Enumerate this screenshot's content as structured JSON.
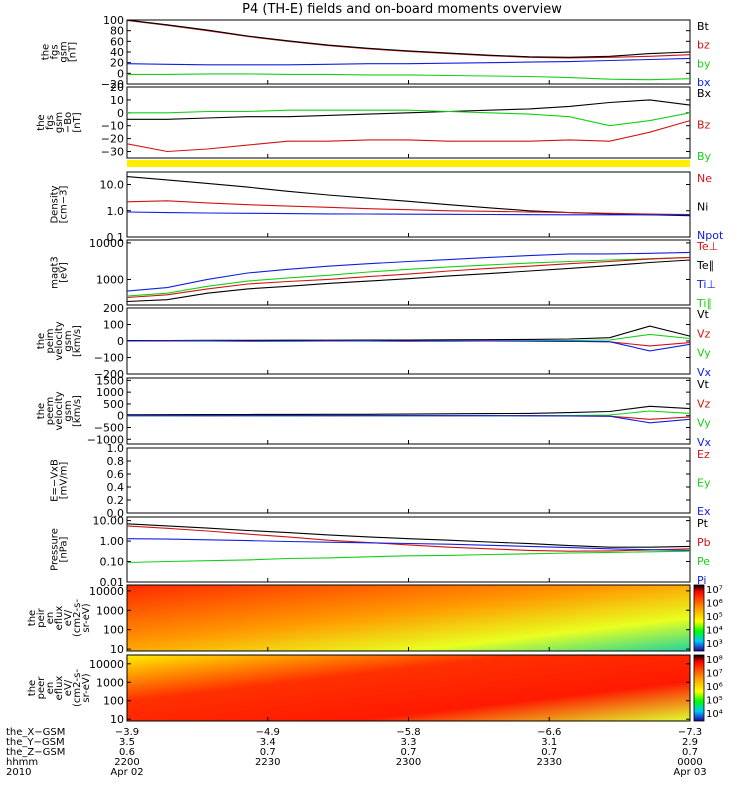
{
  "title": "P4 (TH-E) fields and on-board moments overview",
  "colors": {
    "black": "#000000",
    "red": "#d01414",
    "green": "#16d016",
    "blue": "#1020e0",
    "yellow": "#ffee00"
  },
  "chart_data": [
    {
      "type": "line",
      "ylabel": [
        "the",
        "fgs",
        "gsm",
        "[nT]"
      ],
      "ylim": [
        -20,
        100
      ],
      "yticks": [
        "100",
        "80",
        "60",
        "40",
        "20",
        "0",
        "−20"
      ],
      "legend": [
        {
          "name": "Bt",
          "color": "black"
        },
        {
          "name": "bz",
          "color": "red"
        },
        {
          "name": "by",
          "color": "green"
        },
        {
          "name": "bx",
          "color": "blue"
        }
      ],
      "series": [
        {
          "name": "bz",
          "color": "red",
          "values": [
            99,
            90,
            80,
            69,
            60,
            52,
            46,
            41,
            37,
            33,
            30,
            29,
            30,
            32,
            35
          ]
        },
        {
          "name": "Bt",
          "color": "black",
          "values": [
            100,
            91,
            81,
            70,
            61,
            53,
            47,
            42,
            38,
            34,
            31,
            30,
            32,
            37,
            40
          ]
        },
        {
          "name": "bx",
          "color": "blue",
          "values": [
            18,
            17,
            16,
            16,
            16,
            17,
            18,
            18,
            19,
            20,
            21,
            22,
            24,
            26,
            28
          ]
        },
        {
          "name": "by",
          "color": "green",
          "values": [
            -2,
            -2,
            -1,
            -1,
            -2,
            -2,
            -3,
            -3,
            -4,
            -5,
            -6,
            -8,
            -11,
            -12,
            -10
          ]
        }
      ]
    },
    {
      "type": "line",
      "ylabel": [
        "the",
        "fgs",
        "gsm",
        "−Bo",
        "[nT]"
      ],
      "ylim": [
        -35,
        20
      ],
      "yticks": [
        "20",
        "10",
        "0",
        "−10",
        "−20",
        "−30"
      ],
      "legend": [
        {
          "name": "Bx",
          "color": "black"
        },
        {
          "name": "Bz",
          "color": "red"
        },
        {
          "name": "By",
          "color": "green"
        }
      ],
      "series": [
        {
          "name": "Bx",
          "color": "black",
          "values": [
            -5,
            -5,
            -4,
            -3,
            -3,
            -2,
            -1,
            0,
            1,
            2,
            3,
            5,
            8,
            10,
            6
          ]
        },
        {
          "name": "By",
          "color": "green",
          "values": [
            0,
            0,
            1,
            1,
            2,
            2,
            2,
            2,
            1,
            0,
            -1,
            -3,
            -10,
            -6,
            0
          ]
        },
        {
          "name": "Bz",
          "color": "red",
          "values": [
            -24,
            -30,
            -28,
            -25,
            -22,
            -22,
            -21,
            -21,
            -22,
            -22,
            -22,
            -21,
            -22,
            -15,
            -6
          ]
        }
      ]
    },
    {
      "type": "line",
      "ylabel": [
        "Density",
        "[cm−3]"
      ],
      "ylim": [
        0.1,
        30
      ],
      "log": true,
      "yticks": [
        "10.0",
        "1.0",
        "0.1"
      ],
      "legend": [
        {
          "name": "Ne",
          "color": "red"
        },
        {
          "name": "Ni",
          "color": "black"
        },
        {
          "name": "Npot",
          "color": "blue"
        }
      ],
      "series": [
        {
          "name": "Ni",
          "color": "black",
          "values": [
            20,
            15,
            11,
            8,
            5.5,
            4,
            3,
            2.3,
            1.7,
            1.3,
            1.0,
            0.85,
            0.75,
            0.7,
            0.65
          ]
        },
        {
          "name": "Ne",
          "color": "red",
          "values": [
            2.2,
            2.4,
            2.0,
            1.7,
            1.5,
            1.35,
            1.2,
            1.1,
            1.0,
            0.95,
            0.9,
            0.85,
            0.8,
            0.75,
            0.72
          ]
        },
        {
          "name": "Npot",
          "color": "blue",
          "values": [
            0.9,
            0.85,
            0.82,
            0.8,
            0.78,
            0.76,
            0.75,
            0.74,
            0.73,
            0.72,
            0.71,
            0.7,
            0.7,
            0.7,
            0.7
          ]
        }
      ]
    },
    {
      "type": "line",
      "ylabel": [
        "magt3",
        "[eV]"
      ],
      "ylim": [
        200,
        12000
      ],
      "log": true,
      "yticks": [
        "10000",
        "1000"
      ],
      "legend": [
        {
          "name": "Te⊥",
          "color": "red"
        },
        {
          "name": "Te∥",
          "color": "black"
        },
        {
          "name": "Ti⊥",
          "color": "blue"
        },
        {
          "name": "Ti∥",
          "color": "green"
        }
      ],
      "series": [
        {
          "name": "Ti⊥",
          "color": "blue",
          "values": [
            480,
            600,
            1000,
            1500,
            1900,
            2300,
            2700,
            3100,
            3500,
            4000,
            4500,
            5000,
            5000,
            5200,
            5500
          ]
        },
        {
          "name": "Ti∥",
          "color": "green",
          "values": [
            350,
            420,
            650,
            900,
            1100,
            1300,
            1600,
            1900,
            2200,
            2500,
            2800,
            3100,
            3400,
            3700,
            4000
          ]
        },
        {
          "name": "Te⊥",
          "color": "red",
          "values": [
            320,
            380,
            550,
            750,
            880,
            1000,
            1200,
            1400,
            1700,
            2000,
            2300,
            2700,
            3100,
            3600,
            4000
          ]
        },
        {
          "name": "Te∥",
          "color": "black",
          "values": [
            250,
            280,
            420,
            550,
            650,
            780,
            900,
            1050,
            1250,
            1450,
            1700,
            2000,
            2400,
            2900,
            3400
          ]
        }
      ]
    },
    {
      "type": "line",
      "ylabel": [
        "the",
        "peim",
        "velocity",
        "gsm",
        "[km/s]"
      ],
      "ylim": [
        -200,
        200
      ],
      "yticks": [
        "200",
        "100",
        "0",
        "−100",
        "−200"
      ],
      "legend": [
        {
          "name": "Vt",
          "color": "black"
        },
        {
          "name": "Vz",
          "color": "red"
        },
        {
          "name": "Vy",
          "color": "green"
        },
        {
          "name": "Vx",
          "color": "blue"
        }
      ],
      "series": [
        {
          "name": "Vt",
          "color": "black",
          "values": [
            3,
            3,
            4,
            4,
            5,
            5,
            6,
            6,
            7,
            8,
            10,
            12,
            20,
            90,
            30
          ]
        },
        {
          "name": "Vz",
          "color": "red",
          "values": [
            0,
            1,
            0,
            -1,
            0,
            1,
            0,
            -1,
            0,
            1,
            0,
            -2,
            -5,
            -30,
            -10
          ]
        },
        {
          "name": "Vy",
          "color": "green",
          "values": [
            0,
            0,
            1,
            0,
            -1,
            0,
            1,
            0,
            -1,
            0,
            2,
            3,
            6,
            40,
            15
          ]
        },
        {
          "name": "Vx",
          "color": "blue",
          "values": [
            0,
            0,
            0,
            0,
            0,
            0,
            0,
            0,
            0,
            0,
            -1,
            -2,
            -4,
            -60,
            -20
          ]
        }
      ]
    },
    {
      "type": "line",
      "ylabel": [
        "the",
        "peem",
        "velocity",
        "gsm",
        "[km/s]"
      ],
      "ylim": [
        -1200,
        1600
      ],
      "yticks": [
        "1500",
        "1000",
        "500",
        "0",
        "−500",
        "−1000"
      ],
      "legend": [
        {
          "name": "Vt",
          "color": "black"
        },
        {
          "name": "Vz",
          "color": "red"
        },
        {
          "name": "Vy",
          "color": "green"
        },
        {
          "name": "Vx",
          "color": "blue"
        }
      ],
      "series": [
        {
          "name": "Vt",
          "color": "black",
          "values": [
            40,
            45,
            50,
            50,
            55,
            60,
            60,
            70,
            80,
            90,
            100,
            130,
            180,
            400,
            300
          ]
        },
        {
          "name": "Vz",
          "color": "red",
          "values": [
            0,
            5,
            -5,
            0,
            5,
            -5,
            0,
            5,
            -5,
            0,
            10,
            -10,
            -20,
            -150,
            -50
          ]
        },
        {
          "name": "Vy",
          "color": "green",
          "values": [
            0,
            -5,
            5,
            0,
            -5,
            5,
            0,
            -5,
            5,
            0,
            -10,
            10,
            30,
            200,
            100
          ]
        },
        {
          "name": "Vx",
          "color": "blue",
          "values": [
            0,
            0,
            0,
            0,
            0,
            0,
            0,
            0,
            0,
            0,
            -5,
            -10,
            -20,
            -300,
            -150
          ]
        }
      ]
    },
    {
      "type": "line",
      "ylabel": [
        "E=−VxB",
        "[mV/m]"
      ],
      "ylim": [
        0,
        1
      ],
      "yticks": [
        "1.0",
        "0.8",
        "0.6",
        "0.4",
        "0.2",
        "0.0"
      ],
      "legend": [
        {
          "name": "Ez",
          "color": "red"
        },
        {
          "name": "Ey",
          "color": "green"
        },
        {
          "name": "Ex",
          "color": "blue"
        }
      ],
      "series": []
    },
    {
      "type": "line",
      "ylabel": [
        "Pressure",
        "[nPa]"
      ],
      "ylim": [
        0.01,
        15
      ],
      "log": true,
      "yticks": [
        "10.00",
        "1.00",
        "0.10",
        "0.01"
      ],
      "legend": [
        {
          "name": "Pt",
          "color": "black"
        },
        {
          "name": "Pb",
          "color": "red"
        },
        {
          "name": "Pe",
          "color": "green"
        },
        {
          "name": "Pi",
          "color": "blue"
        }
      ],
      "series": [
        {
          "name": "Pt",
          "color": "black",
          "values": [
            7,
            5.5,
            4.3,
            3.3,
            2.6,
            2.0,
            1.6,
            1.3,
            1.1,
            0.9,
            0.75,
            0.6,
            0.5,
            0.5,
            0.55
          ]
        },
        {
          "name": "Pb",
          "color": "red",
          "values": [
            5.5,
            4.2,
            3.1,
            2.2,
            1.6,
            1.1,
            0.85,
            0.65,
            0.5,
            0.42,
            0.35,
            0.32,
            0.33,
            0.37,
            0.42
          ]
        },
        {
          "name": "Pi",
          "color": "blue",
          "values": [
            1.3,
            1.25,
            1.15,
            1.05,
            0.95,
            0.88,
            0.82,
            0.76,
            0.7,
            0.62,
            0.55,
            0.48,
            0.42,
            0.38,
            0.35
          ]
        },
        {
          "name": "Pe",
          "color": "green",
          "values": [
            0.09,
            0.1,
            0.11,
            0.12,
            0.14,
            0.15,
            0.17,
            0.19,
            0.2,
            0.22,
            0.24,
            0.26,
            0.28,
            0.3,
            0.32
          ]
        }
      ]
    },
    {
      "type": "heatmap",
      "ylabel": [
        "the",
        "peir",
        "en",
        "eflux",
        "eV/",
        "(cm2-s-",
        "sr-eV)"
      ],
      "ylim": [
        8,
        20000
      ],
      "log": true,
      "yticks": [
        "10000",
        "1000",
        "100",
        "10"
      ],
      "colorbar_ticks": [
        "10⁷",
        "10⁶",
        "10⁵",
        "10⁴",
        "10³"
      ]
    },
    {
      "type": "heatmap",
      "ylabel": [
        "the",
        "peer",
        "en",
        "eflux",
        "eV/",
        "(cm2-s-",
        "sr-eV)"
      ],
      "ylim": [
        8,
        30000
      ],
      "log": true,
      "yticks": [
        "10000",
        "1000",
        "100",
        "10"
      ],
      "colorbar_ticks": [
        "10⁸",
        "10⁷",
        "10⁶",
        "10⁵",
        "10⁴"
      ]
    }
  ],
  "axis_table": {
    "row_labels": [
      "the_X−GSM",
      "the_Y−GSM",
      "the_Z−GSM",
      "hhmm",
      "2010"
    ],
    "columns": [
      [
        "−3.9",
        "3.5",
        "0.6",
        "2200",
        "Apr 02"
      ],
      [
        "−4.9",
        "3.4",
        "0.7",
        "2230",
        ""
      ],
      [
        "−5.8",
        "3.3",
        "0.7",
        "2300",
        ""
      ],
      [
        "−6.6",
        "3.1",
        "0.7",
        "2330",
        ""
      ],
      [
        "−7.3",
        "2.9",
        "0.7",
        "0000",
        "Apr 03"
      ]
    ]
  }
}
